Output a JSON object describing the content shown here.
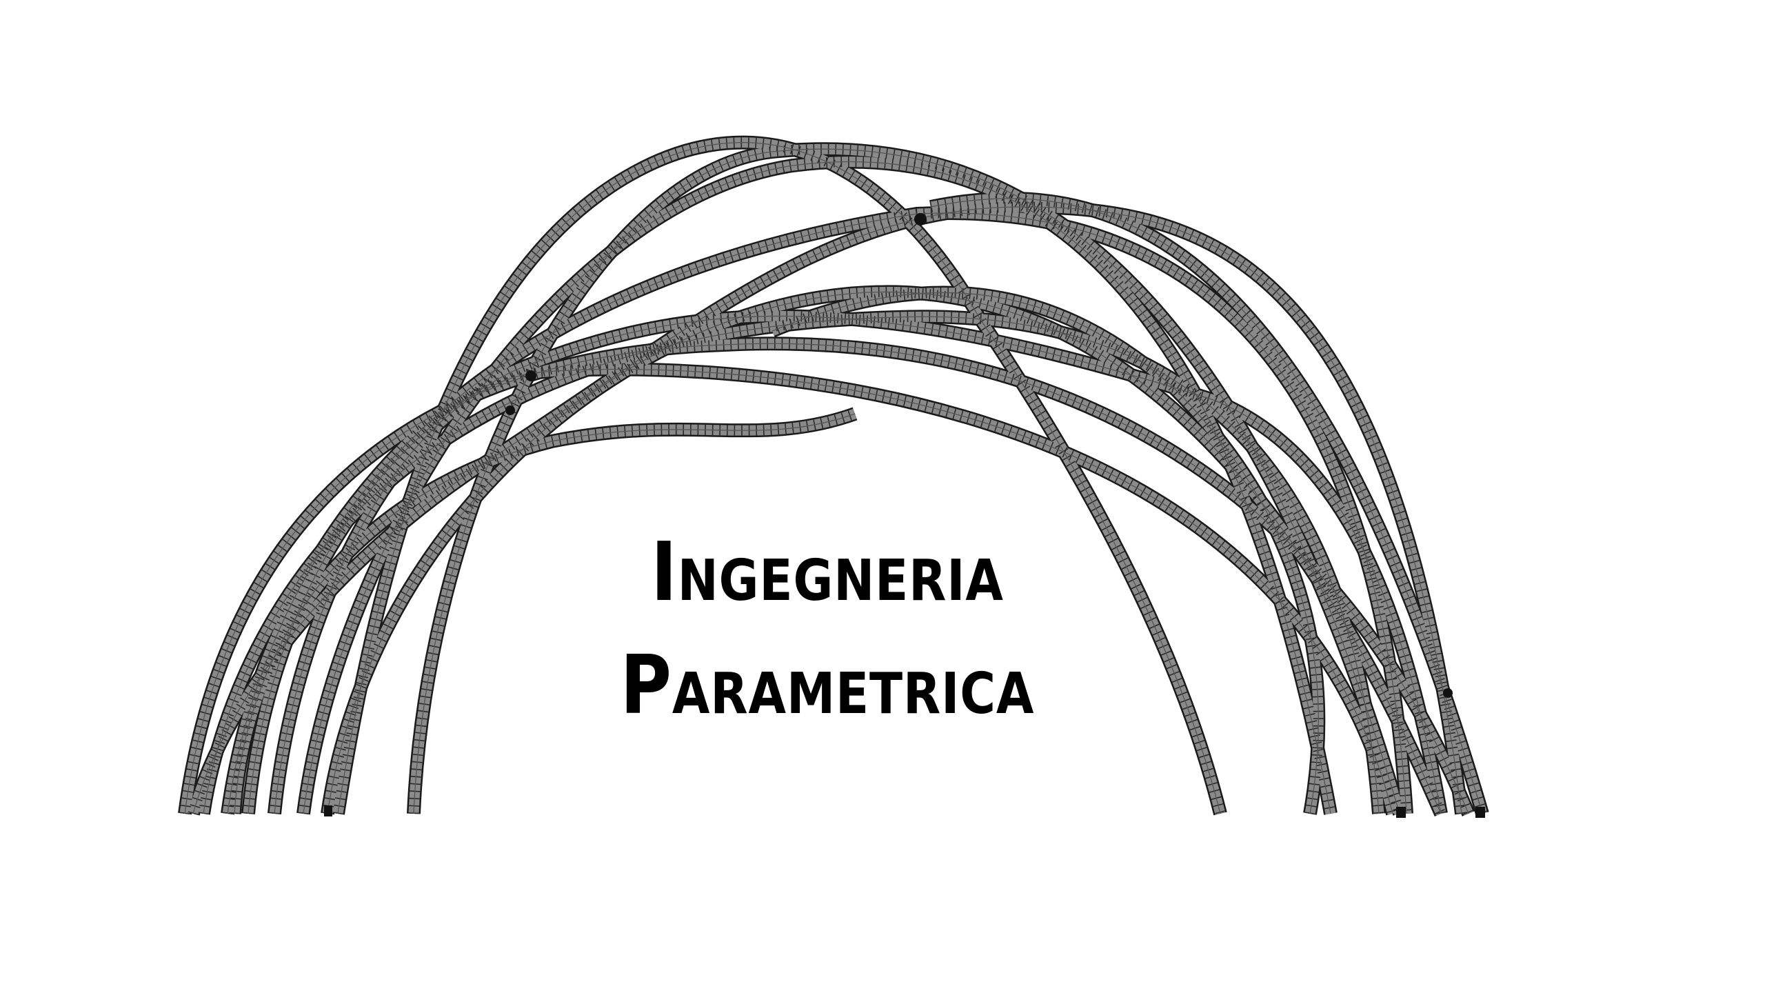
{
  "title": {
    "line1_initial": "I",
    "line1_rest": "NGEGNERIA",
    "line2_initial": "P",
    "line2_rest": "ARAMETRICA"
  },
  "illustration": {
    "icon": "parametric-arch-icon",
    "tube_color": "#8a8a8a",
    "outline_color": "#1a1a1a"
  }
}
